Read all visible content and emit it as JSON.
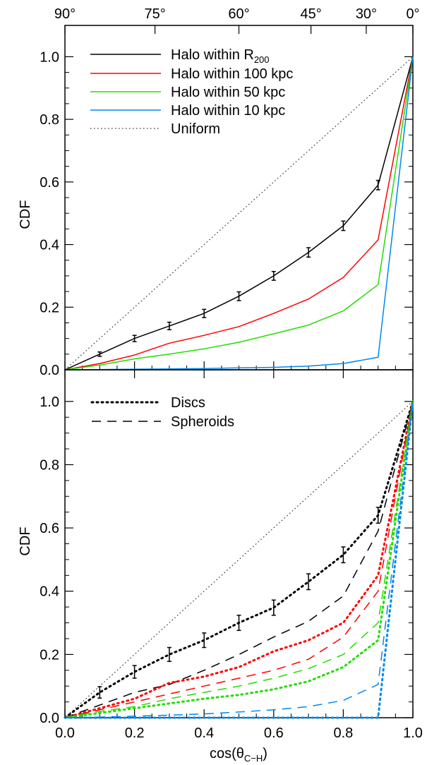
{
  "figure": {
    "top_axis_labels": [
      "90°",
      "75°",
      "60°",
      "45°",
      "30°",
      "0°"
    ],
    "top_axis_cos_positions": [
      0.0,
      0.2588,
      0.5,
      0.7071,
      0.866,
      1.0
    ]
  },
  "chart_data": [
    {
      "type": "line",
      "panel": "top",
      "xlim": [
        0,
        1
      ],
      "ylim": [
        0,
        1.1
      ],
      "ylabel": "CDF",
      "x_ticks": [
        0.0,
        0.2,
        0.4,
        0.6,
        0.8,
        1.0
      ],
      "x_tick_labels": [],
      "y_ticks": [
        0.0,
        0.2,
        0.4,
        0.6,
        0.8,
        1.0
      ],
      "y_tick_labels": [
        "0.0",
        "0.2",
        "0.4",
        "0.6",
        "0.8",
        "1.0"
      ],
      "legend_position": "top-left",
      "series": [
        {
          "name": "Halo within R",
          "name_subscript": "200",
          "color": "#000000",
          "style": "solid",
          "x": [
            0.0,
            0.1,
            0.2,
            0.3,
            0.4,
            0.5,
            0.6,
            0.7,
            0.8,
            0.9,
            1.0
          ],
          "y": [
            0.0,
            0.05,
            0.1,
            0.14,
            0.18,
            0.235,
            0.3,
            0.375,
            0.46,
            0.59,
            1.0
          ],
          "err": [
            0,
            0.007,
            0.01,
            0.012,
            0.013,
            0.014,
            0.014,
            0.015,
            0.015,
            0.015,
            0
          ]
        },
        {
          "name": "Halo within 100 kpc",
          "color": "#ff0000",
          "style": "solid",
          "x": [
            0.0,
            0.1,
            0.2,
            0.3,
            0.4,
            0.5,
            0.6,
            0.7,
            0.8,
            0.9,
            1.0
          ],
          "y": [
            0.0,
            0.02,
            0.047,
            0.085,
            0.11,
            0.138,
            0.18,
            0.226,
            0.295,
            0.415,
            1.0
          ]
        },
        {
          "name": "Halo within 50 kpc",
          "color": "#22dd00",
          "style": "solid",
          "x": [
            0.0,
            0.1,
            0.2,
            0.3,
            0.4,
            0.5,
            0.6,
            0.7,
            0.8,
            0.9,
            1.0
          ],
          "y": [
            0.0,
            0.015,
            0.035,
            0.05,
            0.067,
            0.088,
            0.115,
            0.143,
            0.188,
            0.272,
            1.0
          ]
        },
        {
          "name": "Halo within 10 kpc",
          "color": "#0088ee",
          "style": "solid",
          "x": [
            0.0,
            0.1,
            0.2,
            0.3,
            0.4,
            0.5,
            0.6,
            0.7,
            0.8,
            0.9,
            1.0
          ],
          "y": [
            0.0,
            0.001,
            0.002,
            0.003,
            0.004,
            0.006,
            0.008,
            0.012,
            0.02,
            0.04,
            1.0
          ]
        },
        {
          "name": "Uniform",
          "color": "#000000",
          "style": "thin-dotted",
          "x": [
            0.0,
            1.0
          ],
          "y": [
            0.0,
            1.0
          ]
        }
      ]
    },
    {
      "type": "line",
      "panel": "bottom",
      "xlim": [
        0,
        1
      ],
      "ylim": [
        0,
        1.1
      ],
      "xlabel": "cos(θ",
      "xlabel_subscript": "C−H",
      "xlabel_suffix": ")",
      "ylabel": "CDF",
      "x_ticks": [
        0.0,
        0.2,
        0.4,
        0.6,
        0.8,
        1.0
      ],
      "x_tick_labels": [
        "0.0",
        "0.2",
        "0.4",
        "0.6",
        "0.8",
        "1.0"
      ],
      "y_ticks": [
        0.0,
        0.2,
        0.4,
        0.6,
        0.8,
        1.0
      ],
      "y_tick_labels": [
        "0.0",
        "0.2",
        "0.4",
        "0.6",
        "0.8",
        "1.0"
      ],
      "legend_position": "top-left",
      "legend": [
        {
          "name": "Discs",
          "style": "thick-dotted",
          "color": "#000000"
        },
        {
          "name": "Spheroids",
          "style": "dashed",
          "color": "#000000"
        }
      ],
      "series": [
        {
          "color": "#000000",
          "style": "thick-dotted",
          "x": [
            0.0,
            0.1,
            0.2,
            0.3,
            0.4,
            0.5,
            0.6,
            0.7,
            0.8,
            0.9,
            1.0
          ],
          "y": [
            0.0,
            0.08,
            0.145,
            0.2,
            0.245,
            0.3,
            0.348,
            0.43,
            0.515,
            0.64,
            1.0
          ],
          "err": [
            0,
            0.018,
            0.02,
            0.022,
            0.023,
            0.024,
            0.024,
            0.025,
            0.025,
            0.025,
            0
          ]
        },
        {
          "color": "#000000",
          "style": "dashed",
          "x": [
            0.0,
            0.1,
            0.2,
            0.3,
            0.4,
            0.5,
            0.6,
            0.7,
            0.8,
            0.9,
            1.0
          ],
          "y": [
            0.0,
            0.04,
            0.08,
            0.105,
            0.15,
            0.2,
            0.255,
            0.305,
            0.385,
            0.59,
            1.0
          ]
        },
        {
          "color": "#ff0000",
          "style": "thick-dotted",
          "x": [
            0.0,
            0.1,
            0.2,
            0.3,
            0.4,
            0.5,
            0.6,
            0.7,
            0.8,
            0.9,
            1.0
          ],
          "y": [
            0.0,
            0.03,
            0.06,
            0.11,
            0.13,
            0.16,
            0.21,
            0.245,
            0.3,
            0.45,
            1.0
          ]
        },
        {
          "color": "#ff0000",
          "style": "dashed",
          "x": [
            0.0,
            0.1,
            0.2,
            0.3,
            0.4,
            0.5,
            0.6,
            0.7,
            0.8,
            0.9,
            1.0
          ],
          "y": [
            0.0,
            0.025,
            0.05,
            0.075,
            0.1,
            0.125,
            0.15,
            0.185,
            0.255,
            0.4,
            1.0
          ]
        },
        {
          "color": "#22dd00",
          "style": "thick-dotted",
          "x": [
            0.0,
            0.1,
            0.2,
            0.3,
            0.4,
            0.5,
            0.6,
            0.7,
            0.8,
            0.9,
            1.0
          ],
          "y": [
            0.0,
            0.015,
            0.03,
            0.045,
            0.06,
            0.072,
            0.09,
            0.115,
            0.16,
            0.245,
            1.0
          ]
        },
        {
          "color": "#22dd00",
          "style": "dashed",
          "x": [
            0.0,
            0.1,
            0.2,
            0.3,
            0.4,
            0.5,
            0.6,
            0.7,
            0.8,
            0.9,
            1.0
          ],
          "y": [
            0.0,
            0.02,
            0.035,
            0.06,
            0.08,
            0.1,
            0.125,
            0.155,
            0.2,
            0.3,
            1.0
          ]
        },
        {
          "color": "#0088ee",
          "style": "thick-dotted",
          "x": [
            0.0,
            0.1,
            0.2,
            0.3,
            0.4,
            0.5,
            0.6,
            0.7,
            0.8,
            0.9,
            1.0
          ],
          "y": [
            0.0,
            0.0,
            0.0,
            0.0,
            0.0,
            0.0,
            0.0,
            0.0,
            0.0,
            0.0,
            1.0
          ]
        },
        {
          "color": "#0088ee",
          "style": "dashed",
          "x": [
            0.0,
            0.1,
            0.2,
            0.3,
            0.4,
            0.5,
            0.6,
            0.7,
            0.8,
            0.9,
            1.0
          ],
          "y": [
            0.0,
            0.002,
            0.005,
            0.008,
            0.012,
            0.018,
            0.025,
            0.035,
            0.055,
            0.105,
            1.0
          ]
        },
        {
          "color": "#000000",
          "style": "thin-dotted",
          "x": [
            0.0,
            1.0
          ],
          "y": [
            0.0,
            1.0
          ]
        }
      ]
    }
  ]
}
